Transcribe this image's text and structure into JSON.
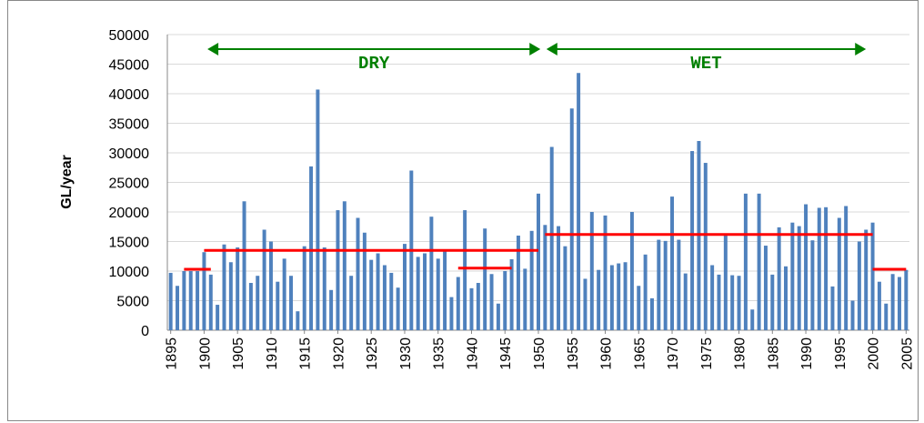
{
  "chart_data": {
    "type": "bar",
    "y_label": "GL/year",
    "color": "#4f81bd",
    "grid": true,
    "x": [
      1895,
      1896,
      1897,
      1898,
      1899,
      1900,
      1901,
      1902,
      1903,
      1904,
      1905,
      1906,
      1907,
      1908,
      1909,
      1910,
      1911,
      1912,
      1913,
      1914,
      1915,
      1916,
      1917,
      1918,
      1919,
      1920,
      1921,
      1922,
      1923,
      1924,
      1925,
      1926,
      1927,
      1928,
      1929,
      1930,
      1931,
      1932,
      1933,
      1934,
      1935,
      1936,
      1937,
      1938,
      1939,
      1940,
      1941,
      1942,
      1943,
      1944,
      1945,
      1946,
      1947,
      1948,
      1949,
      1950,
      1951,
      1952,
      1953,
      1954,
      1955,
      1956,
      1957,
      1958,
      1959,
      1960,
      1961,
      1962,
      1963,
      1964,
      1965,
      1966,
      1967,
      1968,
      1969,
      1970,
      1971,
      1972,
      1973,
      1974,
      1975,
      1976,
      1977,
      1978,
      1979,
      1980,
      1981,
      1982,
      1983,
      1984,
      1985,
      1986,
      1987,
      1988,
      1989,
      1990,
      1991,
      1992,
      1993,
      1994,
      1995,
      1996,
      1997,
      1998,
      1999,
      2000,
      2001,
      2002,
      2003,
      2004,
      2005
    ],
    "values": [
      9700,
      7500,
      10000,
      10000,
      10000,
      13200,
      9400,
      4300,
      14500,
      11500,
      14000,
      21800,
      8000,
      9200,
      17000,
      15000,
      8200,
      12100,
      9200,
      3200,
      14200,
      27700,
      40700,
      14000,
      6800,
      20300,
      21800,
      9200,
      19000,
      16500,
      11900,
      13000,
      11000,
      9700,
      7200,
      14600,
      27000,
      12400,
      13000,
      19200,
      12100,
      13500,
      5600,
      9000,
      20300,
      7100,
      8000,
      17200,
      9500,
      4500,
      10000,
      12000,
      16000,
      10400,
      16800,
      23100,
      17800,
      31000,
      17600,
      14200,
      37500,
      43500,
      8700,
      20000,
      10200,
      19400,
      11000,
      11300,
      11500,
      20000,
      7500,
      12800,
      5400,
      15300,
      15100,
      22600,
      15300,
      9600,
      30300,
      32000,
      28300,
      11000,
      9400,
      16000,
      9300,
      9200,
      23100,
      3500,
      23100,
      14300,
      9400,
      17400,
      10800,
      18200,
      17600,
      21300,
      15200,
      20700,
      20800,
      7400,
      19000,
      21000,
      5000,
      15000,
      17000,
      18200,
      8200,
      4500,
      9500,
      9000,
      10200
    ],
    "xlim": [
      1894.5,
      2005.5
    ],
    "xticks": [
      1895,
      1900,
      1905,
      1910,
      1915,
      1920,
      1925,
      1930,
      1935,
      1940,
      1945,
      1950,
      1955,
      1960,
      1965,
      1970,
      1975,
      1980,
      1985,
      1990,
      1995,
      2000,
      2005
    ],
    "ylim": [
      0,
      50000
    ],
    "yticks": [
      0,
      5000,
      10000,
      15000,
      20000,
      25000,
      30000,
      35000,
      40000,
      45000,
      50000
    ],
    "mean_lines": {
      "color": "#ff0000",
      "items": [
        {
          "x": [
            1897,
            1901
          ],
          "value": 10300
        },
        {
          "x": [
            1900,
            1950
          ],
          "value": 13500
        },
        {
          "x": [
            1938,
            1946
          ],
          "value": 10500
        },
        {
          "x": [
            1951,
            2000
          ],
          "value": 16200
        },
        {
          "x": [
            2000,
            2005
          ],
          "value": 10300
        }
      ]
    },
    "annotations": {
      "color": "#008000",
      "items": [
        {
          "text": "DRY",
          "x": [
            1900.5,
            1950.3
          ]
        },
        {
          "text": "WET",
          "x": [
            1951.2,
            1999
          ]
        }
      ]
    }
  }
}
